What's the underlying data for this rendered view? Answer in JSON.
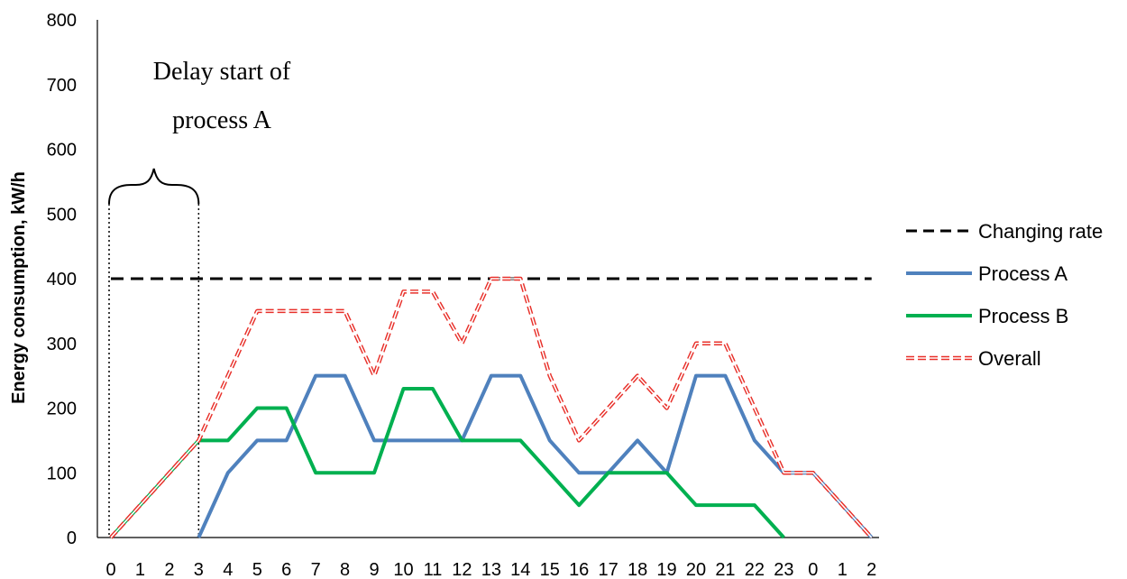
{
  "chart_data": {
    "type": "line",
    "ylabel": "Energy consumption, kW/h",
    "xlabel": "",
    "ylim": [
      0,
      800
    ],
    "yticks": [
      0,
      100,
      200,
      300,
      400,
      500,
      600,
      700,
      800
    ],
    "categories": [
      "0",
      "1",
      "2",
      "3",
      "4",
      "5",
      "6",
      "7",
      "8",
      "9",
      "10",
      "11",
      "12",
      "13",
      "14",
      "15",
      "16",
      "17",
      "18",
      "19",
      "20",
      "21",
      "22",
      "23",
      "0",
      "1",
      "2"
    ],
    "grid": false,
    "legend_position": "right",
    "series": [
      {
        "name": "Changing rate",
        "color": "#000000",
        "style": "dashed",
        "values": [
          400,
          400,
          400,
          400,
          400,
          400,
          400,
          400,
          400,
          400,
          400,
          400,
          400,
          400,
          400,
          400,
          400,
          400,
          400,
          400,
          400,
          400,
          400,
          400,
          400,
          400,
          400
        ]
      },
      {
        "name": "Process A",
        "color": "#4f81bd",
        "style": "solid",
        "values": [
          null,
          null,
          null,
          0,
          100,
          150,
          150,
          250,
          250,
          150,
          150,
          150,
          150,
          250,
          250,
          150,
          100,
          100,
          150,
          100,
          250,
          250,
          150,
          100,
          100,
          50,
          0
        ]
      },
      {
        "name": "Process B",
        "color": "#00b050",
        "style": "solid",
        "values": [
          0,
          50,
          100,
          150,
          150,
          200,
          200,
          100,
          100,
          100,
          230,
          230,
          150,
          150,
          150,
          100,
          50,
          100,
          100,
          100,
          50,
          50,
          50,
          0,
          null,
          null,
          null
        ]
      },
      {
        "name": "Overall",
        "color": "#e8302a",
        "style": "double-dashed",
        "values": [
          0,
          50,
          100,
          150,
          250,
          350,
          350,
          350,
          350,
          250,
          380,
          380,
          300,
          400,
          400,
          250,
          150,
          200,
          250,
          200,
          300,
          300,
          200,
          100,
          100,
          50,
          0
        ]
      }
    ],
    "annotations": [
      {
        "text_lines": [
          "Delay start of",
          "process A"
        ],
        "from_category_index": 0,
        "to_category_index": 3
      }
    ]
  }
}
